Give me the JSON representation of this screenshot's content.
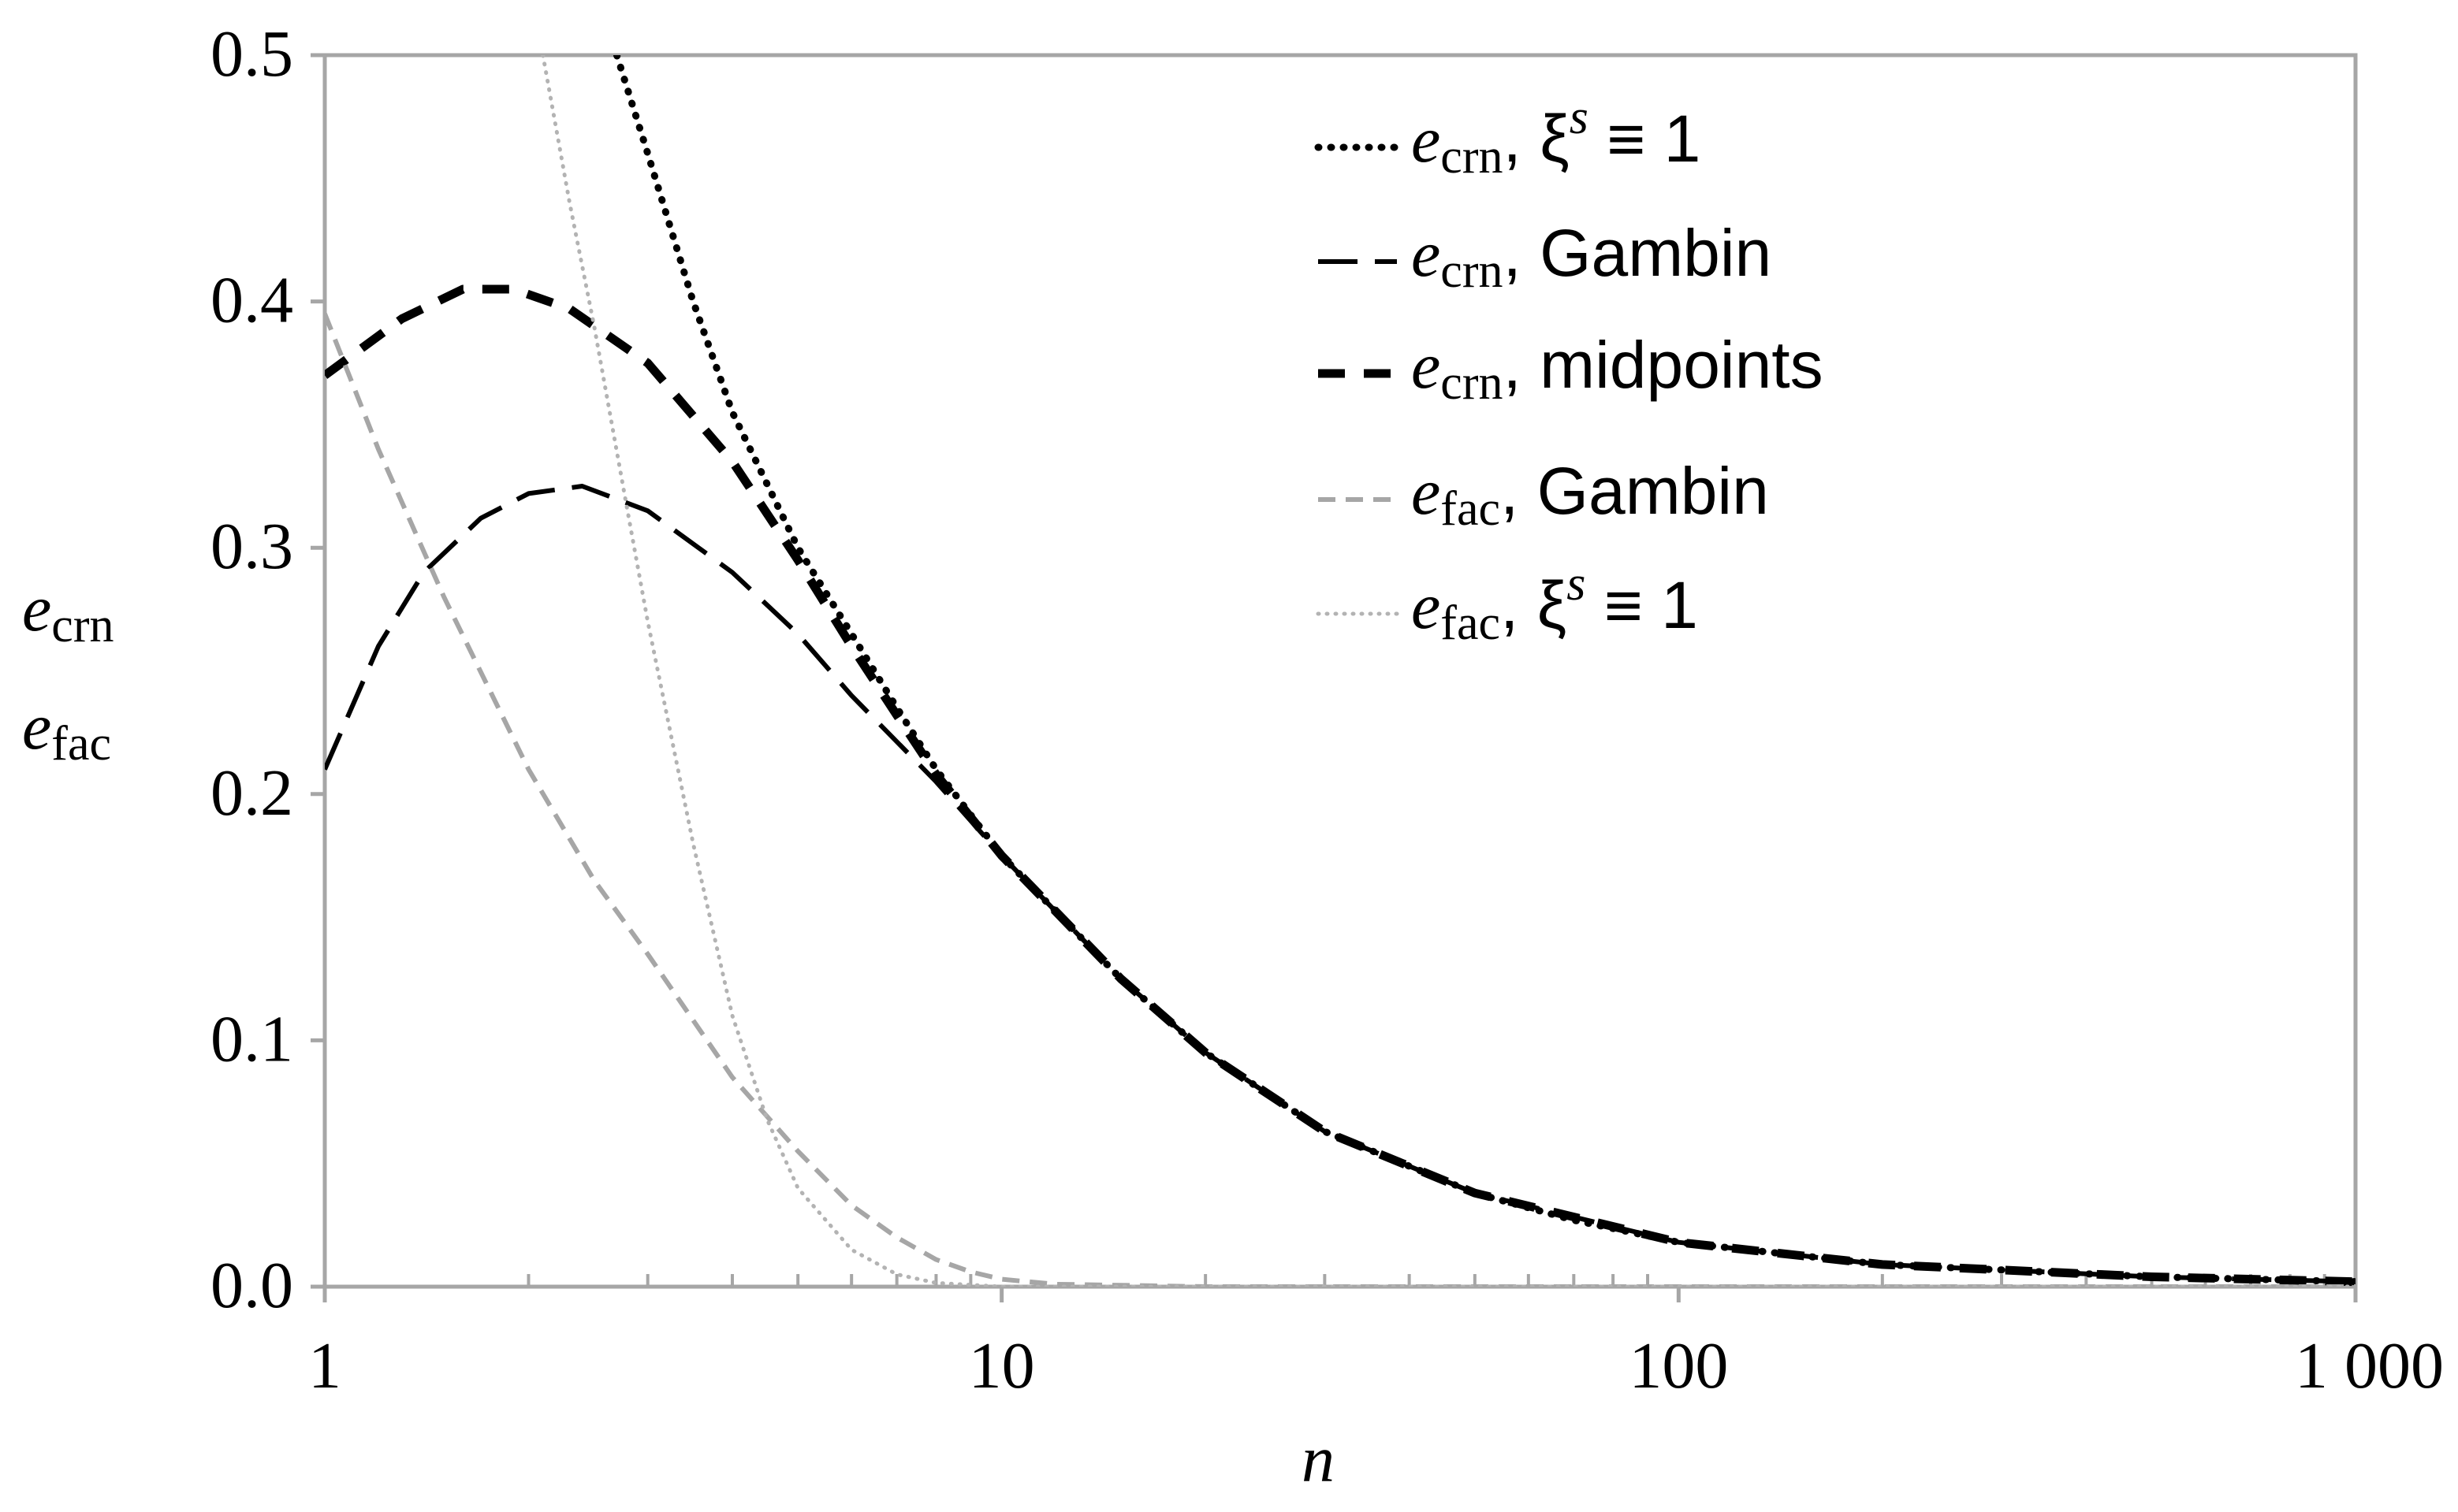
{
  "chart_data": {
    "type": "line",
    "x_scale": "log",
    "xlim": [
      1,
      1000
    ],
    "ylim": [
      0.0,
      0.5
    ],
    "grid": false,
    "legend_position": "top-right",
    "x_ticks": [
      {
        "value": 1,
        "label": "1"
      },
      {
        "value": 10,
        "label": "10"
      },
      {
        "value": 100,
        "label": "100"
      },
      {
        "value": 1000,
        "label": "1 000"
      }
    ],
    "y_ticks": [
      {
        "value": 0.0,
        "label": "0.0"
      },
      {
        "value": 0.1,
        "label": "0.1"
      },
      {
        "value": 0.2,
        "label": "0.2"
      },
      {
        "value": 0.3,
        "label": "0.3"
      },
      {
        "value": 0.4,
        "label": "0.4"
      },
      {
        "value": 0.5,
        "label": "0.5"
      }
    ],
    "xlabel": "n",
    "ylabel": {
      "line1": {
        "base": "e",
        "sub": "crn"
      },
      "line2": {
        "base": "e",
        "sub": "fac"
      }
    },
    "series": [
      {
        "key": "ecrn_xi1",
        "legend": {
          "base": "e",
          "sub": "crn",
          "rest": ", ξ",
          "sup": "s",
          "tail": " ≡ 1"
        },
        "color": "#000000",
        "style": "dotted",
        "points": [
          [
            2.7,
            0.5
          ],
          [
            3,
            0.46
          ],
          [
            3.5,
            0.4
          ],
          [
            4,
            0.355
          ],
          [
            5,
            0.3
          ],
          [
            6,
            0.265
          ],
          [
            7,
            0.235
          ],
          [
            8,
            0.21
          ],
          [
            10,
            0.175
          ],
          [
            15,
            0.125
          ],
          [
            20,
            0.095
          ],
          [
            30,
            0.063
          ],
          [
            50,
            0.038
          ],
          [
            70,
            0.027
          ],
          [
            100,
            0.018
          ],
          [
            200,
            0.009
          ],
          [
            500,
            0.004
          ],
          [
            1000,
            0.002
          ]
        ]
      },
      {
        "key": "ecrn_gambin",
        "legend": {
          "base": "e",
          "sub": "crn",
          "rest": ", Gambin",
          "sup": "",
          "tail": ""
        },
        "color": "#000000",
        "style": "long-dash",
        "points": [
          [
            1,
            0.21
          ],
          [
            1.2,
            0.26
          ],
          [
            1.4,
            0.29
          ],
          [
            1.7,
            0.312
          ],
          [
            2,
            0.322
          ],
          [
            2.4,
            0.325
          ],
          [
            3,
            0.315
          ],
          [
            4,
            0.29
          ],
          [
            5,
            0.265
          ],
          [
            6,
            0.24
          ],
          [
            8,
            0.205
          ],
          [
            10,
            0.175
          ],
          [
            15,
            0.125
          ],
          [
            20,
            0.095
          ],
          [
            30,
            0.063
          ],
          [
            50,
            0.038
          ],
          [
            100,
            0.018
          ],
          [
            200,
            0.009
          ],
          [
            500,
            0.004
          ],
          [
            1000,
            0.002
          ]
        ]
      },
      {
        "key": "ecrn_midpoints",
        "legend": {
          "base": "e",
          "sub": "crn",
          "rest": ", midpoints",
          "sup": "",
          "tail": ""
        },
        "color": "#000000",
        "style": "bold-dash",
        "points": [
          [
            1,
            0.37
          ],
          [
            1.3,
            0.393
          ],
          [
            1.6,
            0.405
          ],
          [
            1.9,
            0.405
          ],
          [
            2.3,
            0.397
          ],
          [
            3,
            0.375
          ],
          [
            4,
            0.335
          ],
          [
            5,
            0.295
          ],
          [
            6,
            0.26
          ],
          [
            7,
            0.232
          ],
          [
            8,
            0.208
          ],
          [
            10,
            0.175
          ],
          [
            15,
            0.125
          ],
          [
            20,
            0.095
          ],
          [
            30,
            0.063
          ],
          [
            50,
            0.038
          ],
          [
            100,
            0.018
          ],
          [
            200,
            0.009
          ],
          [
            500,
            0.004
          ],
          [
            1000,
            0.002
          ]
        ]
      },
      {
        "key": "efac_gambin",
        "legend": {
          "base": "e",
          "sub": "fac",
          "rest": ", Gambin",
          "sup": "",
          "tail": ""
        },
        "color": "#a6a6a6",
        "style": "dash",
        "points": [
          [
            1,
            0.395
          ],
          [
            1.2,
            0.34
          ],
          [
            1.5,
            0.28
          ],
          [
            2,
            0.21
          ],
          [
            2.5,
            0.165
          ],
          [
            3,
            0.135
          ],
          [
            4,
            0.085
          ],
          [
            5,
            0.055
          ],
          [
            6,
            0.033
          ],
          [
            7,
            0.02
          ],
          [
            8,
            0.011
          ],
          [
            9,
            0.006
          ],
          [
            10,
            0.003
          ],
          [
            12,
            0.001
          ],
          [
            20,
            0.0
          ],
          [
            1000,
            0.0
          ]
        ]
      },
      {
        "key": "efac_xi1",
        "legend": {
          "base": "e",
          "sub": "fac",
          "rest": ", ξ",
          "sup": "s",
          "tail": " ≡ 1"
        },
        "color": "#b3b3b3",
        "style": "dotted-light",
        "points": [
          [
            2.1,
            0.5
          ],
          [
            2.3,
            0.44
          ],
          [
            2.5,
            0.39
          ],
          [
            2.8,
            0.315
          ],
          [
            3,
            0.27
          ],
          [
            3.5,
            0.18
          ],
          [
            4,
            0.11
          ],
          [
            4.5,
            0.068
          ],
          [
            5,
            0.04
          ],
          [
            6,
            0.015
          ],
          [
            7,
            0.005
          ],
          [
            8,
            0.0015
          ],
          [
            10,
            0.0
          ],
          [
            1000,
            0.0
          ]
        ]
      }
    ]
  }
}
